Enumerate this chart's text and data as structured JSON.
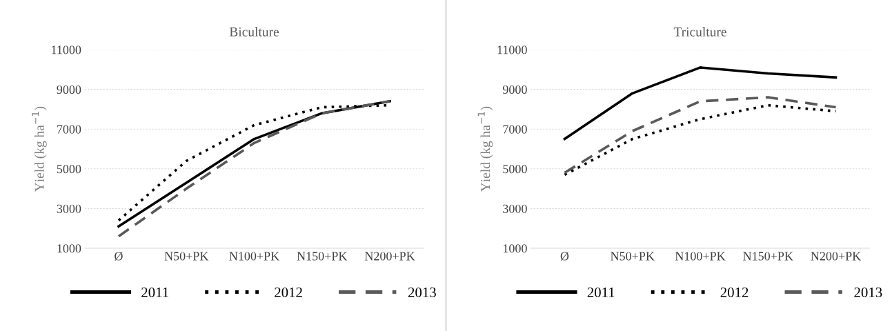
{
  "chart_data": [
    {
      "type": "line",
      "title": "Biculture",
      "ylabel": "Yield (kg ha$^{−1}$)",
      "categories": [
        "Ø",
        "N50+PK",
        "N100+PK",
        "N150+PK",
        "N200+PK"
      ],
      "ylim": [
        1000,
        11000
      ],
      "yticks": [
        1000,
        3000,
        5000,
        7000,
        9000,
        11000
      ],
      "grid": "y",
      "legend": "bottom",
      "series": [
        {
          "name": "2011",
          "color": "#000000",
          "line_style": "solid",
          "values": [
            2100,
            4300,
            6500,
            7800,
            8400
          ]
        },
        {
          "name": "2012",
          "color": "#000000",
          "line_style": "dotted",
          "values": [
            2400,
            5400,
            7200,
            8100,
            8200
          ]
        },
        {
          "name": "2013",
          "color": "#595959",
          "line_style": "dashed",
          "values": [
            1600,
            4000,
            6300,
            7800,
            8400
          ]
        }
      ]
    },
    {
      "type": "line",
      "title": "Triculture",
      "ylabel": "Yield (kg ha$^{−1}$)",
      "categories": [
        "Ø",
        "N50+PK",
        "N100+PK",
        "N150+PK",
        "N200+PK"
      ],
      "ylim": [
        1000,
        11000
      ],
      "yticks": [
        1000,
        3000,
        5000,
        7000,
        9000,
        11000
      ],
      "grid": "y",
      "legend": "bottom",
      "series": [
        {
          "name": "2011",
          "color": "#000000",
          "line_style": "solid",
          "values": [
            6500,
            8800,
            10100,
            9800,
            9600
          ]
        },
        {
          "name": "2012",
          "color": "#000000",
          "line_style": "dotted",
          "values": [
            4700,
            6500,
            7500,
            8200,
            7900
          ]
        },
        {
          "name": "2013",
          "color": "#595959",
          "line_style": "dashed",
          "values": [
            4800,
            6900,
            8400,
            8600,
            8100
          ]
        }
      ]
    }
  ]
}
